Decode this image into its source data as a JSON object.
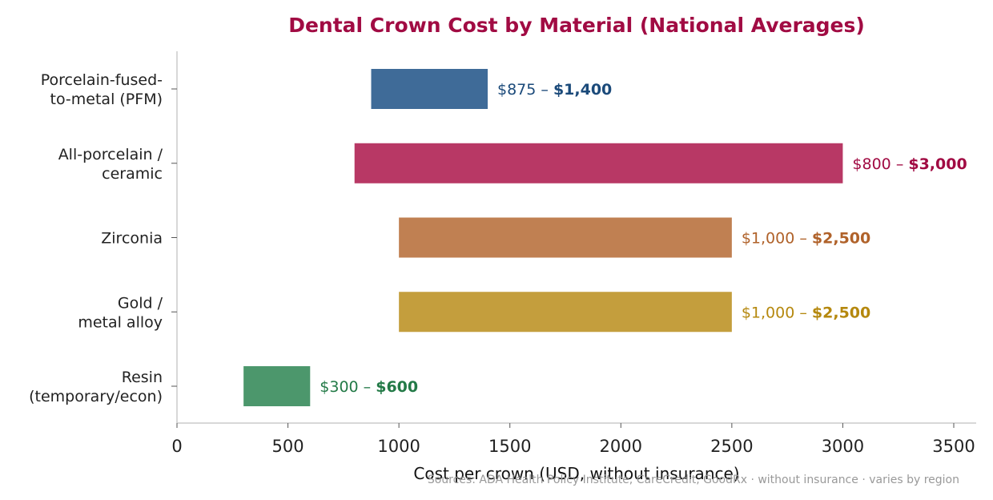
{
  "chart_data": {
    "type": "bar",
    "orientation": "horizontal",
    "title": "Dental Crown Cost by Material (National Averages)",
    "xlabel": "Cost per crown (USD, without insurance)",
    "ylabel": "",
    "xlim": [
      0,
      3600
    ],
    "xticks": [
      0,
      500,
      1000,
      1500,
      2000,
      2500,
      3000,
      3500
    ],
    "grid": false,
    "source_note": "Sources: ADA Health Policy Institute, CareCredit, GoodRx · without insurance · varies by region",
    "categories": [
      [
        "Porcelain-fused-",
        "to-metal (PFM)"
      ],
      [
        "All-porcelain /",
        "ceramic"
      ],
      [
        "Zirconia"
      ],
      [
        "Gold /",
        "metal alloy"
      ],
      [
        "Resin",
        "(temporary/econ)"
      ]
    ],
    "ranges": [
      {
        "low": 875,
        "high": 1400,
        "low_label": "$875 – ",
        "high_label": "$1,400",
        "color": "#3f6b98",
        "label_color": "#1b4a7a"
      },
      {
        "low": 800,
        "high": 3000,
        "low_label": "$800 – ",
        "high_label": "$3,000",
        "color": "#b83865",
        "label_color": "#a10b43"
      },
      {
        "low": 1000,
        "high": 2500,
        "low_label": "$1,000 – ",
        "high_label": "$2,500",
        "color": "#c08052",
        "label_color": "#b0622a"
      },
      {
        "low": 1000,
        "high": 2500,
        "low_label": "$1,000 – ",
        "high_label": "$2,500",
        "color": "#c49e3d",
        "label_color": "#b5880e"
      },
      {
        "low": 300,
        "high": 600,
        "low_label": "$300 – ",
        "high_label": "$600",
        "color": "#4c976c",
        "label_color": "#237a47"
      }
    ]
  }
}
